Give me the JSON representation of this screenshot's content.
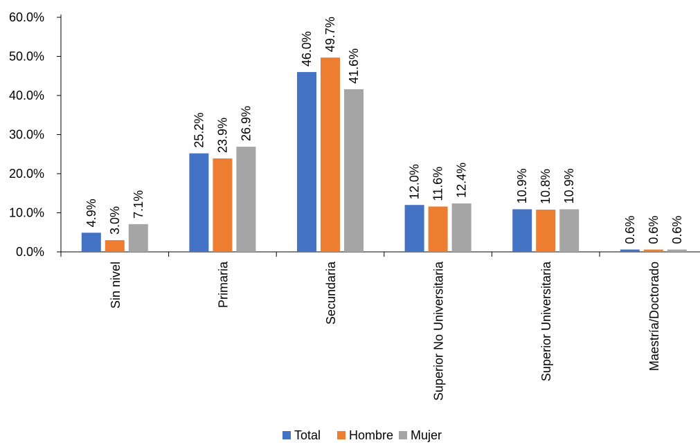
{
  "chart_data": {
    "type": "bar",
    "categories": [
      "Sin nivel",
      "Primaria",
      "Secundaria",
      "Superior No Universitaria",
      "Superior Universitaria",
      "Maestría/Doctorado"
    ],
    "series": [
      {
        "name": "Total",
        "color": "#4472C4",
        "values": [
          4.9,
          25.2,
          46.0,
          12.0,
          10.9,
          0.6
        ]
      },
      {
        "name": "Hombre",
        "color": "#ED7D31",
        "values": [
          3.0,
          23.9,
          49.7,
          11.6,
          10.8,
          0.6
        ]
      },
      {
        "name": "Mujer",
        "color": "#A5A5A5",
        "values": [
          7.1,
          26.9,
          41.6,
          12.4,
          10.9,
          0.6
        ]
      }
    ],
    "y_ticks": [
      "0.0%",
      "10.0%",
      "20.0%",
      "30.0%",
      "40.0%",
      "50.0%",
      "60.0%"
    ],
    "ylim": [
      0,
      60
    ],
    "value_suffix": "%",
    "value_decimals": 1,
    "grid": false,
    "legend_position": "bottom"
  }
}
